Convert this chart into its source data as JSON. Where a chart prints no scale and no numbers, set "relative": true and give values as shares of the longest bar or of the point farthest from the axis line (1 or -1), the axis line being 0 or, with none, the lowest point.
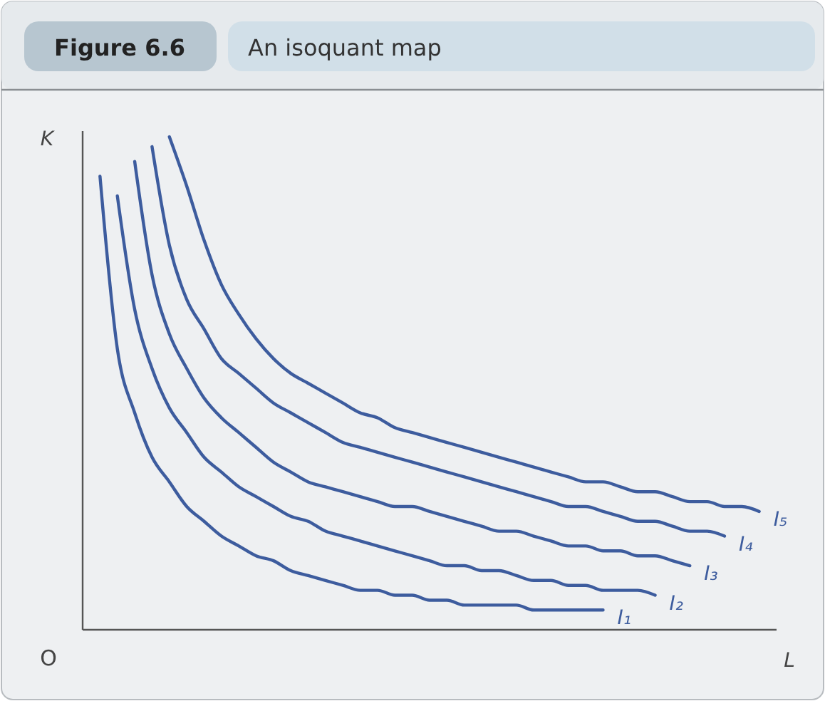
{
  "chart_data": {
    "type": "line",
    "title": "An isoquant map",
    "subtitle": "Figure 6.6",
    "xlabel": "L",
    "ylabel": "K",
    "annotations": [
      "O"
    ],
    "relative": true,
    "line_style": "solid",
    "categories": [
      null,
      null,
      null,
      null,
      null,
      null,
      null,
      null,
      null,
      null,
      null,
      null,
      null,
      null,
      null,
      null,
      null,
      null,
      null,
      null,
      null,
      null,
      null,
      null,
      null,
      null,
      null,
      null,
      null,
      null,
      null,
      null,
      null,
      null,
      null,
      null,
      null,
      null,
      null,
      null,
      null
    ],
    "series": [
      {
        "name": "I₁",
        "color": "#3d5c9e",
        "values": [
          null,
          0.92,
          0.57,
          0.44,
          0.35,
          0.3,
          0.25,
          0.22,
          0.19,
          0.17,
          0.15,
          0.14,
          0.12,
          0.11,
          0.1,
          0.09,
          0.08,
          0.08,
          0.07,
          0.07,
          0.06,
          0.06,
          0.05,
          0.05,
          0.05,
          0.05,
          0.04,
          0.04,
          0.04,
          0.04,
          0.04,
          null,
          null,
          null,
          null,
          null,
          null,
          null,
          null,
          null,
          null
        ]
      },
      {
        "name": "I₂",
        "color": "#3d5c9e",
        "values": [
          null,
          null,
          0.88,
          0.65,
          0.53,
          0.45,
          0.4,
          0.35,
          0.32,
          0.29,
          0.27,
          0.25,
          0.23,
          0.22,
          0.2,
          0.19,
          0.18,
          0.17,
          0.16,
          0.15,
          0.14,
          0.13,
          0.13,
          0.12,
          0.12,
          0.11,
          0.1,
          0.1,
          0.09,
          0.09,
          0.08,
          0.08,
          0.08,
          0.07,
          null,
          null,
          null,
          null,
          null,
          null,
          null
        ]
      },
      {
        "name": "I₃",
        "color": "#3d5c9e",
        "values": [
          null,
          null,
          null,
          0.95,
          0.72,
          0.6,
          0.53,
          0.47,
          0.43,
          0.4,
          0.37,
          0.34,
          0.32,
          0.3,
          0.29,
          0.28,
          0.27,
          0.26,
          0.25,
          0.25,
          0.24,
          0.23,
          0.22,
          0.21,
          0.2,
          0.2,
          0.19,
          0.18,
          0.17,
          0.17,
          0.16,
          0.16,
          0.15,
          0.15,
          0.14,
          0.13,
          null,
          null,
          null,
          null,
          null
        ]
      },
      {
        "name": "I₄",
        "color": "#3d5c9e",
        "values": [
          null,
          null,
          null,
          null,
          0.98,
          0.78,
          0.67,
          0.61,
          0.55,
          0.52,
          0.49,
          0.46,
          0.44,
          0.42,
          0.4,
          0.38,
          0.37,
          0.36,
          0.35,
          0.34,
          0.33,
          0.32,
          0.31,
          0.3,
          0.29,
          0.28,
          0.27,
          0.26,
          0.25,
          0.25,
          0.24,
          0.23,
          0.22,
          0.22,
          0.21,
          0.2,
          0.2,
          0.19,
          null,
          null,
          null
        ]
      },
      {
        "name": "I₅",
        "color": "#3d5c9e",
        "values": [
          null,
          null,
          null,
          null,
          null,
          1,
          0.9,
          0.79,
          0.7,
          0.64,
          0.59,
          0.55,
          0.52,
          0.5,
          0.48,
          0.46,
          0.44,
          0.43,
          0.41,
          0.4,
          0.39,
          0.38,
          0.37,
          0.36,
          0.35,
          0.34,
          0.33,
          0.32,
          0.31,
          0.3,
          0.3,
          0.29,
          0.28,
          0.28,
          0.27,
          0.26,
          0.26,
          0.25,
          0.25,
          0.24,
          null
        ]
      }
    ]
  }
}
